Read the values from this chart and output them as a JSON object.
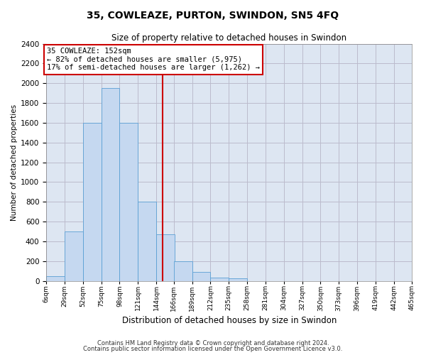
{
  "title": "35, COWLEAZE, PURTON, SWINDON, SN5 4FQ",
  "subtitle": "Size of property relative to detached houses in Swindon",
  "xlabel": "Distribution of detached houses by size in Swindon",
  "ylabel": "Number of detached properties",
  "footer1": "Contains HM Land Registry data © Crown copyright and database right 2024.",
  "footer2": "Contains public sector information licensed under the Open Government Licence v3.0.",
  "annotation_title": "35 COWLEAZE: 152sqm",
  "annotation_line1": "← 82% of detached houses are smaller (5,975)",
  "annotation_line2": "17% of semi-detached houses are larger (1,262) →",
  "property_size": 152,
  "bar_bins": [
    6,
    29,
    52,
    75,
    98,
    121,
    144,
    166,
    189,
    212,
    235,
    258,
    281,
    304,
    327,
    350,
    373,
    396,
    419,
    442,
    465
  ],
  "bar_values": [
    50,
    500,
    1600,
    1950,
    1600,
    800,
    470,
    200,
    90,
    30,
    25,
    0,
    0,
    0,
    0,
    0,
    0,
    0,
    0,
    0
  ],
  "bar_color": "#c5d8f0",
  "bar_edge_color": "#5a9fd4",
  "vline_color": "#cc0000",
  "vline_x": 152,
  "annotation_box_color": "#ffffff",
  "annotation_box_edge": "#cc0000",
  "grid_color": "#bbbbcc",
  "bg_color": "#dde6f2",
  "ylim": [
    0,
    2400
  ],
  "yticks": [
    0,
    200,
    400,
    600,
    800,
    1000,
    1200,
    1400,
    1600,
    1800,
    2000,
    2200,
    2400
  ],
  "title_fontsize": 10,
  "subtitle_fontsize": 8.5,
  "ylabel_fontsize": 7.5,
  "xlabel_fontsize": 8.5,
  "ytick_fontsize": 7.5,
  "xtick_fontsize": 6.5,
  "footer_fontsize": 6.0,
  "ann_fontsize": 7.5
}
